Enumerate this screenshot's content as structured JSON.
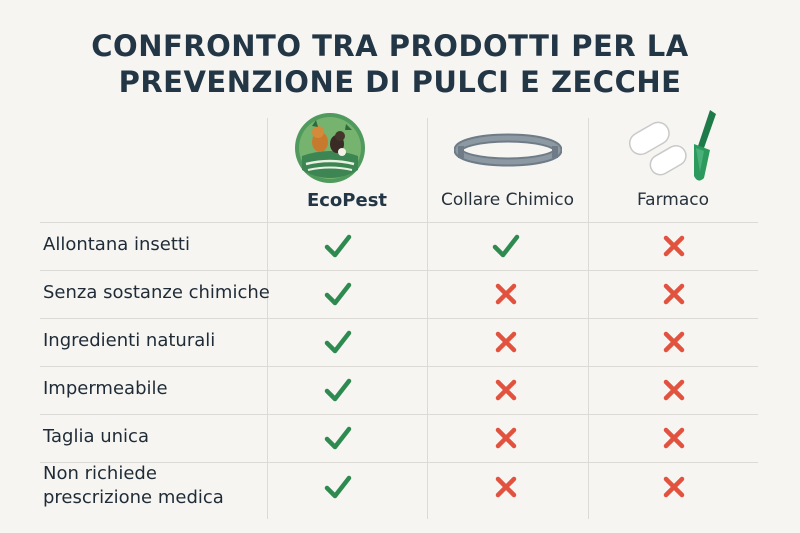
{
  "title": {
    "line1": "CONFRONTO TRA PRODOTTI PER LA",
    "line2": "PREVENZIONE DI PULCI E ZECCHE"
  },
  "columns": [
    {
      "label": "EcoPest",
      "icon": "ecopest-logo-icon"
    },
    {
      "label": "Collare Chimico",
      "icon": "collar-icon"
    },
    {
      "label": "Farmaco",
      "icon": "pills-applicator-icon"
    }
  ],
  "rows": [
    {
      "label": "Allontana insetti",
      "values": [
        "yes",
        "yes",
        "no"
      ]
    },
    {
      "label": "Senza sostanze chimiche",
      "values": [
        "yes",
        "no",
        "no"
      ]
    },
    {
      "label": "Ingredienti naturali",
      "values": [
        "yes",
        "no",
        "no"
      ]
    },
    {
      "label": "Impermeabile",
      "values": [
        "yes",
        "no",
        "no"
      ]
    },
    {
      "label": "Taglia unica",
      "values": [
        "yes",
        "no",
        "no"
      ]
    },
    {
      "label": "Non richiede\nprescrizione medica",
      "values": [
        "yes",
        "no",
        "no"
      ]
    }
  ],
  "colors": {
    "check": "#2e8a4f",
    "cross": "#e2533f",
    "title": "#233645"
  }
}
